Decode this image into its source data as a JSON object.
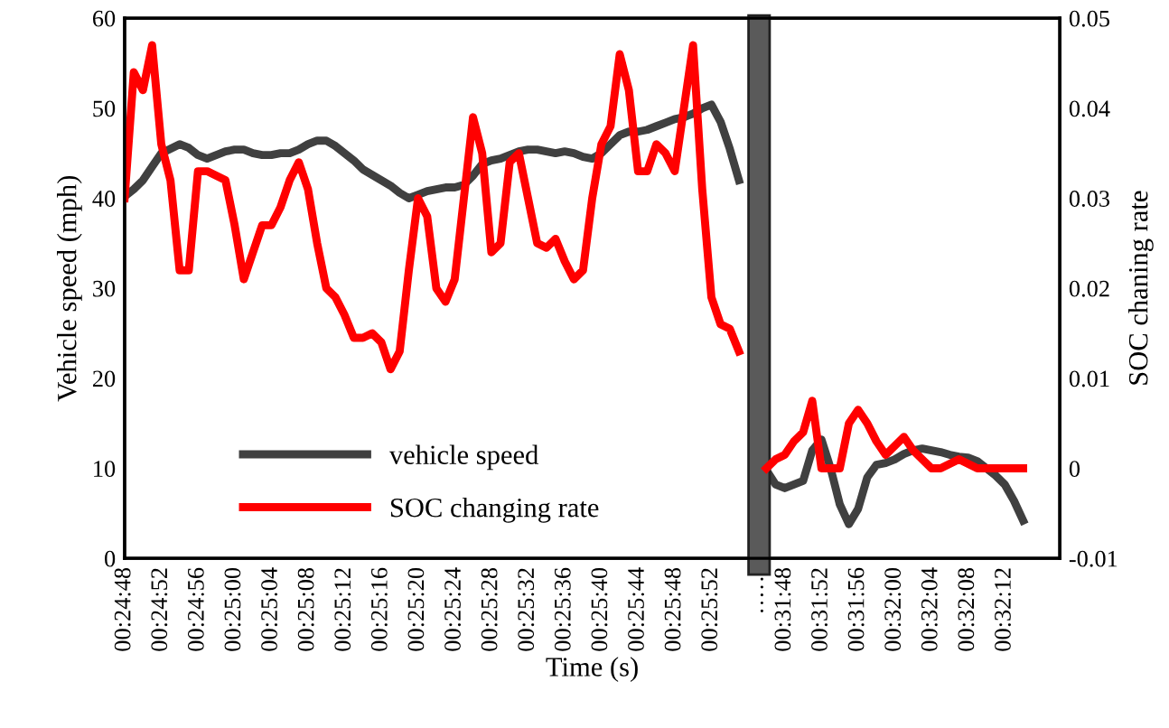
{
  "chart_data": {
    "type": "line",
    "xlabel": "Time (s)",
    "ylabel": "Vehicle speed (mph)",
    "y2label": "SOC chaning rate",
    "categories": [
      "00:24:48",
      null,
      null,
      null,
      "00:24:52",
      null,
      null,
      null,
      "00:24:56",
      null,
      null,
      null,
      "00:25:00",
      null,
      null,
      null,
      "00:25:04",
      null,
      null,
      null,
      "00:25:08",
      null,
      null,
      null,
      "00:25:12",
      null,
      null,
      null,
      "00:25:16",
      null,
      null,
      null,
      "00:25:20",
      null,
      null,
      null,
      "00:25:24",
      null,
      null,
      null,
      "00:25:28",
      null,
      null,
      null,
      "00:25:32",
      null,
      null,
      null,
      "00:25:36",
      null,
      null,
      null,
      "00:25:40",
      null,
      null,
      null,
      "00:25:44",
      null,
      null,
      null,
      "00:25:48",
      null,
      null,
      null,
      "00:25:52",
      null,
      null,
      null,
      null,
      "……",
      null,
      null,
      "00:31:48",
      null,
      null,
      null,
      "00:31:52",
      null,
      null,
      null,
      "00:31:56",
      null,
      null,
      null,
      "00:32:00",
      null,
      null,
      null,
      "00:32:04",
      null,
      null,
      null,
      "00:32:08",
      null,
      null,
      null,
      "00:32:12",
      null,
      null,
      null,
      null,
      null,
      null
    ],
    "series": [
      {
        "name": "vehicle speed",
        "color": "#404040",
        "values": [
          40.2,
          41,
          42,
          43.5,
          45,
          45.5,
          46,
          45.6,
          44.8,
          44.4,
          44.8,
          45.2,
          45.4,
          45.4,
          45,
          44.8,
          44.8,
          45,
          45,
          45.4,
          46,
          46.4,
          46.4,
          45.8,
          45,
          44.2,
          43.2,
          42.6,
          42,
          41.4,
          40.6,
          40,
          40.4,
          40.8,
          41,
          41.2,
          41.2,
          41.5,
          42.5,
          43.8,
          44.2,
          44.4,
          44.8,
          45.2,
          45.4,
          45.4,
          45.2,
          45,
          45.2,
          45,
          44.6,
          44.4,
          45,
          46,
          47,
          47.4,
          47.4,
          47.6,
          48,
          48.4,
          48.8,
          49,
          49.4,
          50,
          50.4,
          48.5,
          45.5,
          42,
          null,
          null,
          9.8,
          8.2,
          7.8,
          8.2,
          8.6,
          12,
          13.2,
          10,
          6,
          3.8,
          5.5,
          9,
          10.4,
          10.6,
          11,
          11.6,
          12,
          12.2,
          12,
          11.8,
          11.5,
          11.3,
          11.2,
          10.8,
          10,
          9.2,
          8.2,
          6.4,
          4.2,
          null,
          null,
          null,
          null
        ]
      },
      {
        "name": "SOC changing rate",
        "color": "#ff0000",
        "axis": "y2",
        "values": [
          0.03,
          0.044,
          0.042,
          0.047,
          0.036,
          0.032,
          0.022,
          0.022,
          0.033,
          0.033,
          0.0325,
          0.032,
          0.027,
          0.021,
          0.024,
          0.027,
          0.027,
          0.029,
          0.032,
          0.034,
          0.031,
          0.025,
          0.02,
          0.019,
          0.017,
          0.0145,
          0.0145,
          0.015,
          0.014,
          0.011,
          0.013,
          0.022,
          0.03,
          0.028,
          0.02,
          0.0185,
          0.021,
          0.03,
          0.039,
          0.035,
          0.024,
          0.025,
          0.034,
          0.035,
          0.03,
          0.025,
          0.0245,
          0.0255,
          0.023,
          0.021,
          0.022,
          0.03,
          0.036,
          0.038,
          0.046,
          0.042,
          0.033,
          0.033,
          0.036,
          0.035,
          0.033,
          0.04,
          0.047,
          0.031,
          0.019,
          0.016,
          0.0155,
          0.013,
          null,
          null,
          0.0,
          0.001,
          0.0015,
          0.003,
          0.004,
          0.0075,
          0.0,
          0.0,
          0.0,
          0.005,
          0.0065,
          0.005,
          0.003,
          0.0015,
          0.0025,
          0.0035,
          0.002,
          0.001,
          0.0,
          0.0,
          0.0005,
          0.001,
          0.0005,
          0.0,
          0.0,
          0.0,
          0.0,
          0.0,
          0.0,
          null,
          null,
          null,
          null
        ]
      }
    ],
    "ylim": [
      0,
      60
    ],
    "yticks": [
      0,
      10,
      20,
      30,
      40,
      50,
      60
    ],
    "y2lim": [
      -0.01,
      0.05
    ],
    "y2ticks": [
      {
        "value": -0.01,
        "label": "-0.01"
      },
      0,
      0.01,
      0.02,
      0.03,
      0.04,
      0.05
    ],
    "legend": "bottom left",
    "grid": false,
    "marker": "none",
    "line_style": "solid"
  }
}
